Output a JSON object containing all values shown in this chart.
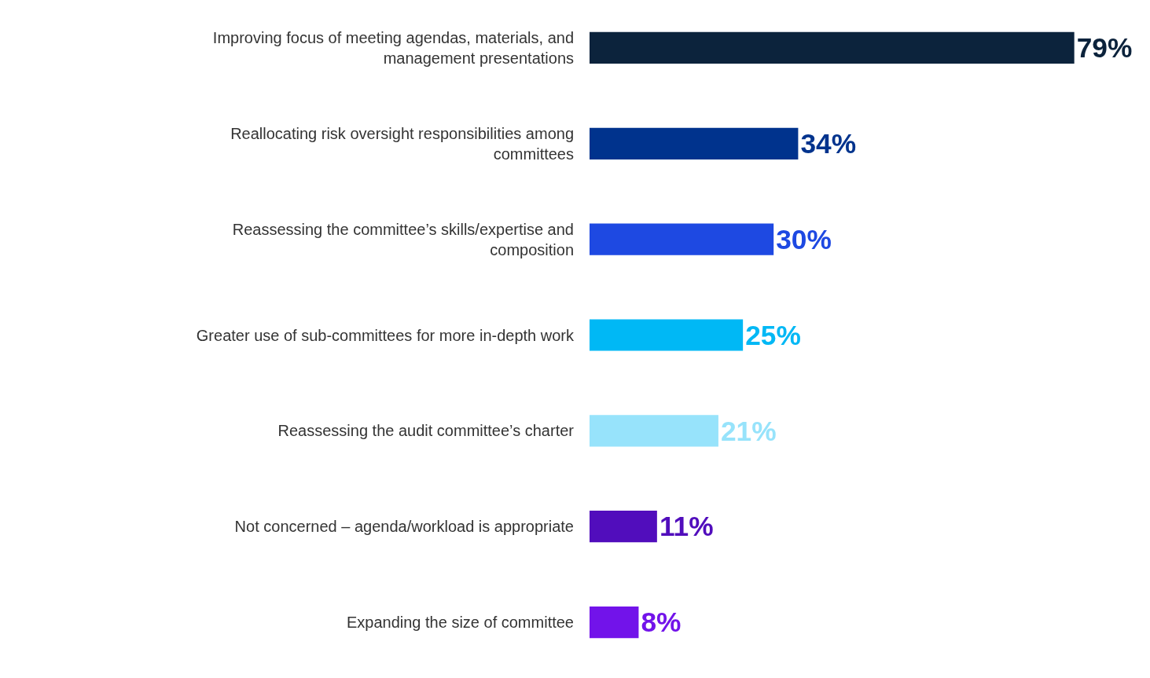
{
  "chart_data": {
    "type": "bar",
    "orientation": "horizontal",
    "categories": [
      "Improving focus of meeting agendas, materials, and management presentations",
      "Reallocating risk oversight responsibilities among committees",
      "Reassessing the committee’s skills/expertise and composition",
      "Greater use of sub-committees for more in-depth work",
      "Reassessing the audit committee’s charter",
      "Not concerned – agenda/workload is appropriate",
      "Expanding the size of committee"
    ],
    "values": [
      79,
      34,
      30,
      25,
      21,
      11,
      8
    ],
    "value_labels": [
      "79%",
      "34%",
      "30%",
      "25%",
      "21%",
      "11%",
      "8%"
    ],
    "colors": [
      "#0c233c",
      "#00338d",
      "#1e49e2",
      "#00b8f5",
      "#97e3fb",
      "#510dbc",
      "#7213ea"
    ],
    "legend": false,
    "tick_labels": "y"
  }
}
